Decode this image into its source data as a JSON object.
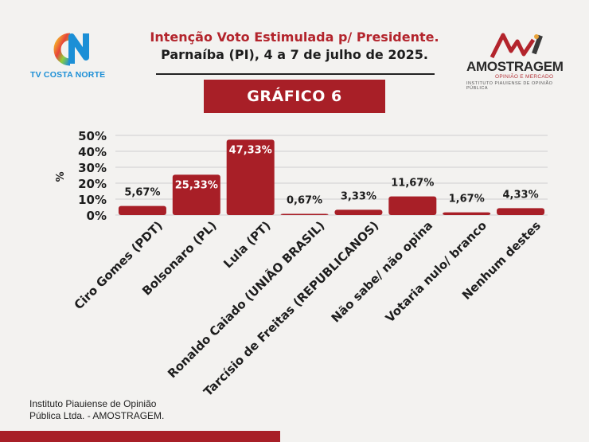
{
  "header": {
    "title": "Intenção Voto Estimulada p/ Presidente.",
    "subtitle": "Parnaíba (PI), 4 a 7 de julho de 2025.",
    "badge": "GRÁFICO 6"
  },
  "logos": {
    "left_brand": "TV COSTA NORTE",
    "right_brand": "AMOSTRAGEM",
    "right_tagline": "OPINIÃO E MERCADO",
    "right_institute": "INSTITUTO PIAUIENSE DE OPINIÃO PÚBLICA"
  },
  "footer": {
    "line1": "Instituto Piauiense de Opinião",
    "line2": "Pública Ltda. - AMOSTRAGEM."
  },
  "colors": {
    "bar": "#a81f27",
    "accent": "#b3242c",
    "grid": "#cfcfcf"
  },
  "chart_data": {
    "type": "bar",
    "ylabel": "%",
    "ylim": [
      0,
      50
    ],
    "yticks": [
      "0%",
      "10%",
      "20%",
      "30%",
      "40%",
      "50%"
    ],
    "grid": true,
    "categories": [
      "Ciro Gomes (PDT)",
      "Bolsonaro (PL)",
      "Lula (PT)",
      "Ronaldo Caiado (UNIÃO BRASIL)",
      "Tarcísio de Freitas (REPUBLICANOS)",
      "Não sabe/ não opina",
      "Votaria nulo/ branco",
      "Nenhum destes"
    ],
    "values": [
      5.67,
      25.33,
      47.33,
      0.67,
      3.33,
      11.67,
      1.67,
      4.33
    ],
    "labels": [
      "5,67%",
      "25,33%",
      "47,33%",
      "0,67%",
      "3,33%",
      "11,67%",
      "1,67%",
      "4,33%"
    ]
  }
}
